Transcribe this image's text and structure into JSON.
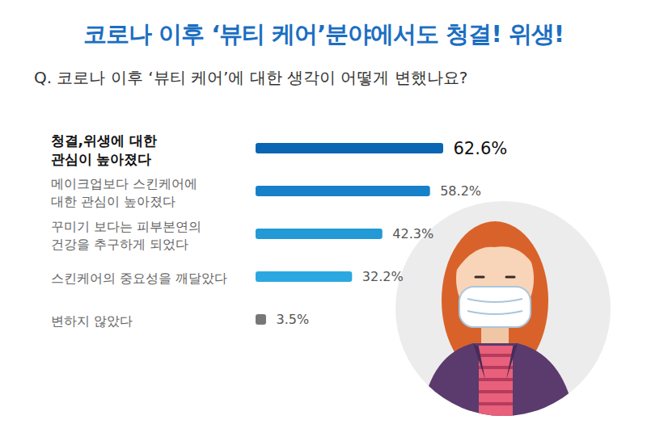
{
  "chart_data": {
    "type": "bar",
    "orientation": "horizontal",
    "title": "코로나 이후 ‘뷰티 케어’분야에서도 청결! 위생!",
    "subtitle": "Q. 코로나 이후 ‘뷰티 케어’에 대한 생각이 어떻게 변했나요?",
    "categories": [
      "청결,위생에 대한\n관심이 높아졌다",
      "메이크업보다 스킨케어에\n대한 관심이 높아졌다",
      "꾸미기 보다는 피부본연의\n건강을 추구하게 되었다",
      "스킨케어의 중요성을 깨달았다",
      "변하지 않았다"
    ],
    "values": [
      62.6,
      58.2,
      42.3,
      32.2,
      3.5
    ],
    "value_labels": [
      "62.6%",
      "58.2%",
      "42.3%",
      "32.2%",
      "3.5%"
    ],
    "colors": [
      "#0a66b3",
      "#1681c8",
      "#2399d6",
      "#2ba8e0",
      "#777777"
    ],
    "data_labels": true,
    "tick_labels": false,
    "grid": false
  }
}
